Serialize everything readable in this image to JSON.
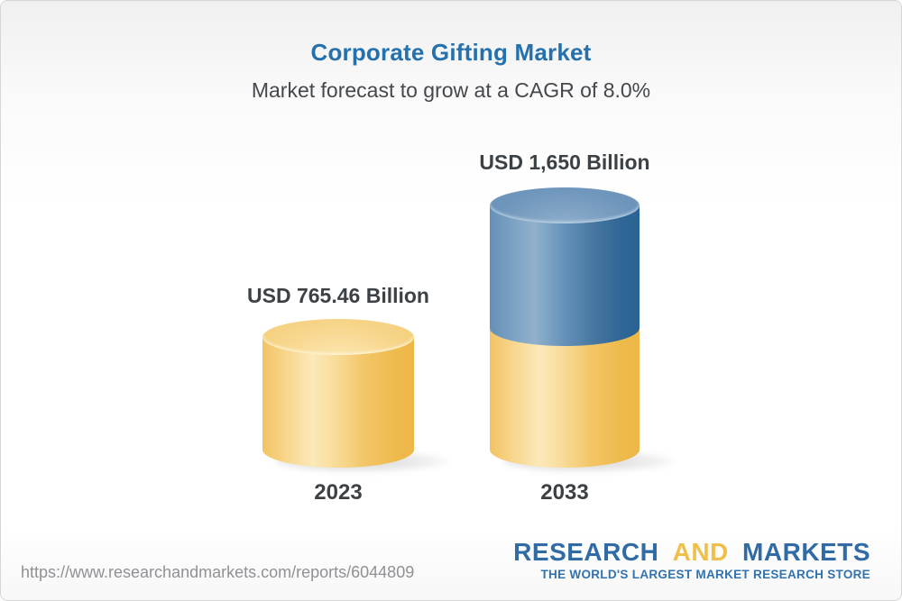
{
  "header": {
    "title": "Corporate Gifting Market",
    "subtitle": "Market forecast to grow at a CAGR of 8.0%"
  },
  "chart_data": {
    "type": "bar",
    "variant": "3d-cylinder",
    "title": "Corporate Gifting Market",
    "subtitle": "Market forecast to grow at a CAGR of 8.0%",
    "cagr_percent": 8.0,
    "unit": "USD Billion",
    "categories": [
      "2023",
      "2033"
    ],
    "values": [
      765.46,
      1650
    ],
    "value_labels": [
      "USD 765.46 Billion",
      "USD 1,650 Billion"
    ],
    "colors": {
      "base_yellow": "#f5c964",
      "growth_blue": "#4579a8",
      "label_text": "#3c4145",
      "title_blue": "#2471ad"
    },
    "legend": "none",
    "grid": false,
    "notes": "2033 bar is a stacked cylinder: yellow base segment equal to 2023 level, blue growth segment on top"
  },
  "footer": {
    "url": "https://www.researchandmarkets.com/reports/6044809",
    "logo": {
      "word1": "RESEARCH",
      "word2": "AND",
      "word3": "MARKETS",
      "tagline": "THE WORLD'S LARGEST MARKET RESEARCH STORE"
    }
  }
}
